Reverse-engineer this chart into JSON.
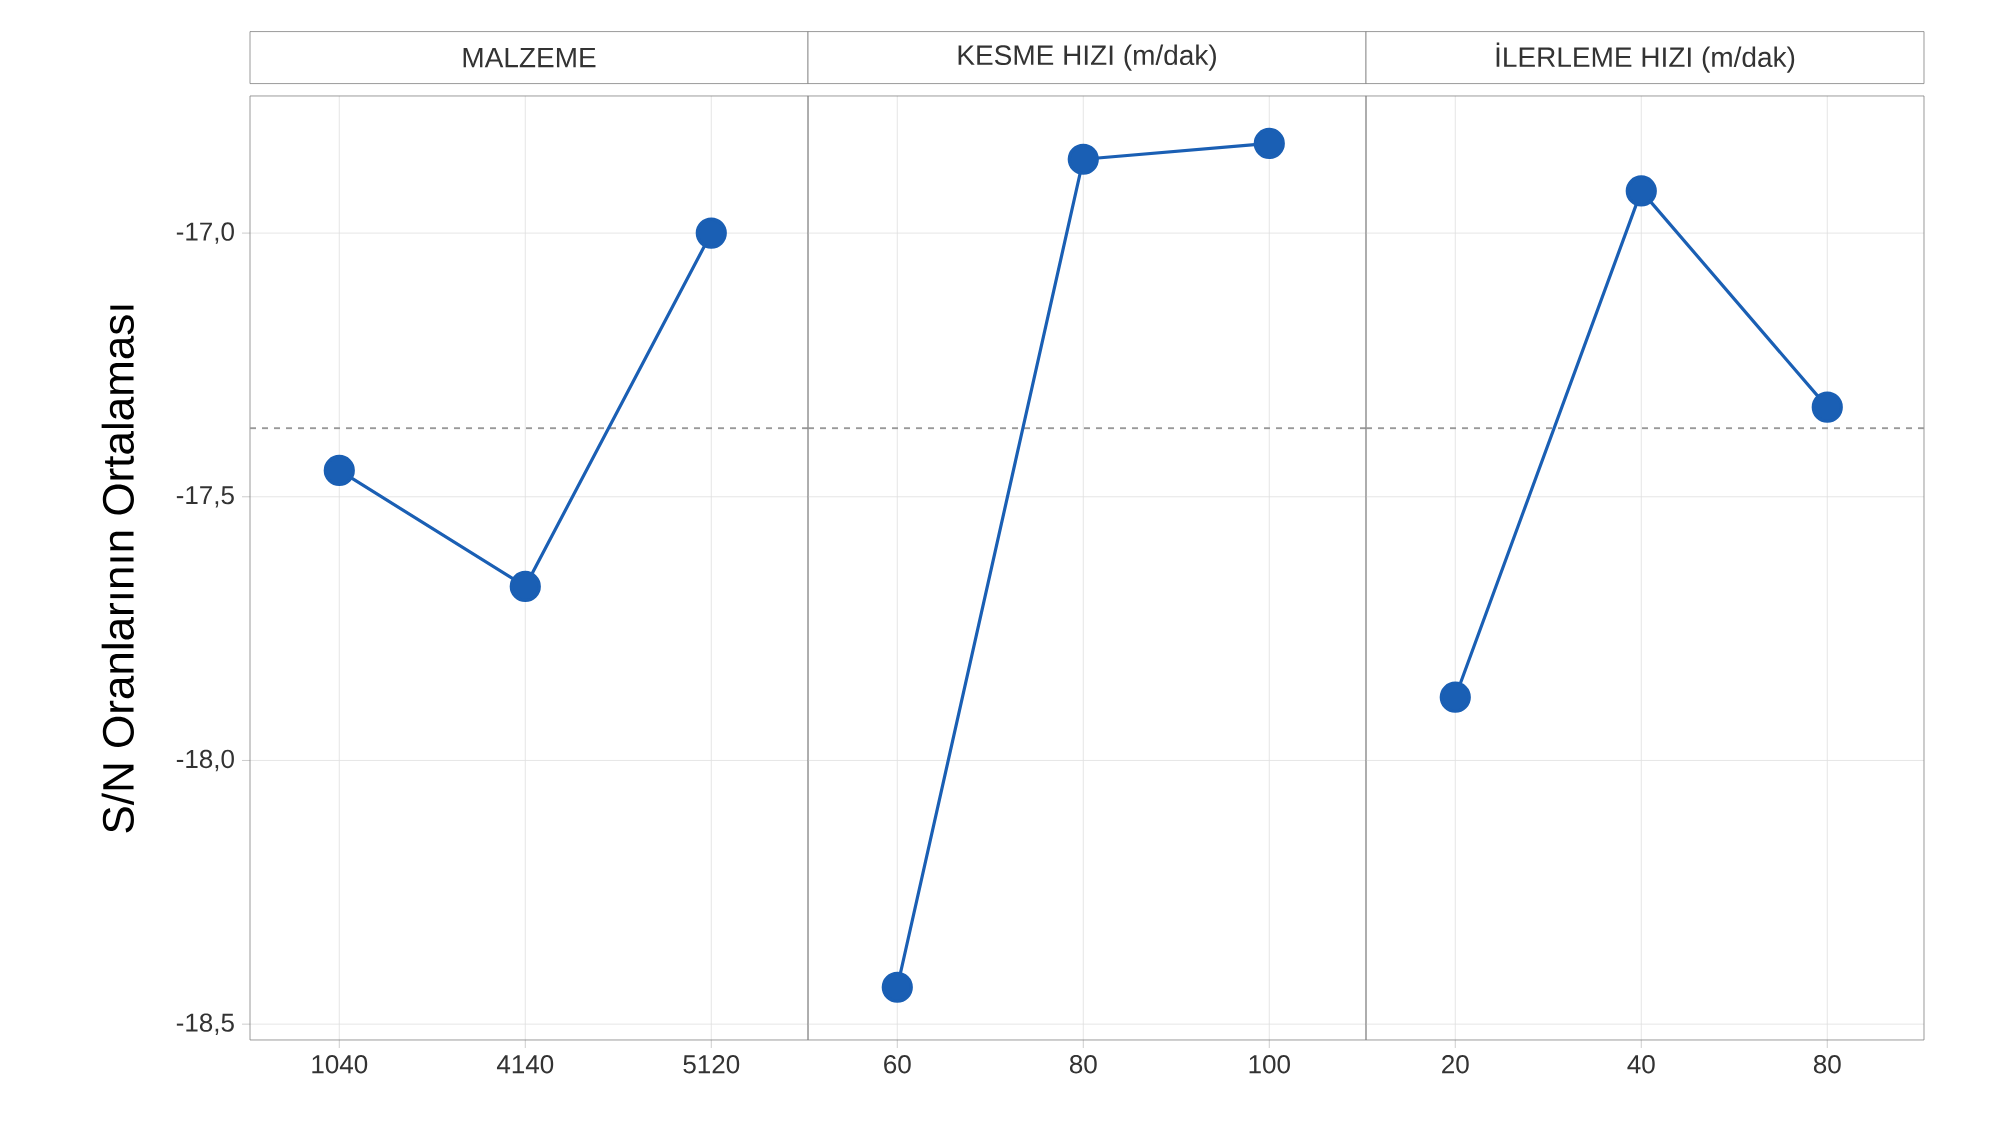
{
  "chart_data": [
    {
      "type": "line",
      "title": "MALZEME",
      "ylabel": "S/N Oranlarının Ortalaması",
      "categories": [
        "1040",
        "4140",
        "5120"
      ],
      "values": [
        -17.45,
        -17.67,
        -17.0
      ],
      "color": "#1a5fb4",
      "marker": "circle",
      "ylim": [
        -18.53,
        -16.74
      ],
      "yticks": [
        {
          "value": -17.0,
          "label": "-17,0"
        },
        {
          "value": -17.5,
          "label": "-17,5"
        },
        {
          "value": -18.0,
          "label": "-18,0"
        },
        {
          "value": -18.5,
          "label": "-18,5"
        }
      ],
      "grid": true,
      "ref_lines": [
        {
          "axis": "y",
          "value": -17.37,
          "color": "#999999",
          "line_style": "dashed"
        }
      ]
    },
    {
      "type": "line",
      "title": "KESME HIZI (m/dak)",
      "categories": [
        "60",
        "80",
        "100"
      ],
      "values": [
        -18.43,
        -16.86,
        -16.83
      ],
      "color": "#1a5fb4",
      "marker": "circle",
      "ylim": [
        -18.53,
        -16.74
      ],
      "yticks": [
        -17.0,
        -17.5,
        -18.0,
        -18.5
      ],
      "grid": true,
      "tick_labels": "x",
      "ref_lines": [
        {
          "axis": "y",
          "value": -17.37,
          "color": "#999999",
          "line_style": "dashed"
        }
      ]
    },
    {
      "type": "line",
      "title": "İLERLEME HIZI (m/dak)",
      "categories": [
        "20",
        "40",
        "80"
      ],
      "values": [
        -17.88,
        -16.92,
        -17.33
      ],
      "color": "#1a5fb4",
      "marker": "circle",
      "ylim": [
        -18.53,
        -16.74
      ],
      "yticks": [
        -17.0,
        -17.5,
        -18.0,
        -18.5
      ],
      "grid": true,
      "tick_labels": "x",
      "ref_lines": [
        {
          "axis": "y",
          "value": -17.37,
          "color": "#999999",
          "line_style": "dashed"
        }
      ]
    }
  ]
}
